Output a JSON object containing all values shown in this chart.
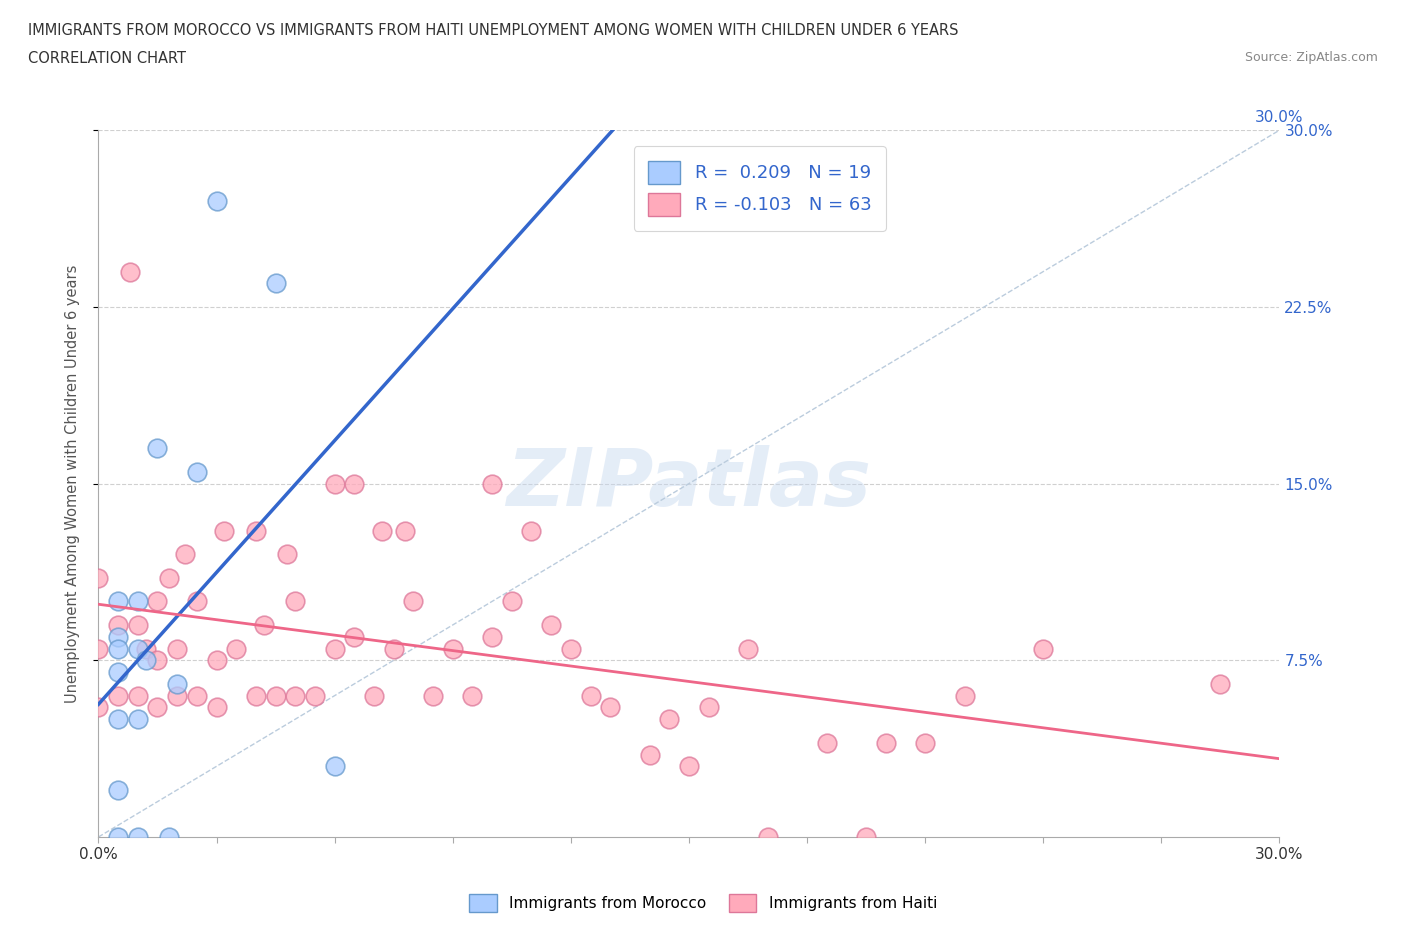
{
  "title_line1": "IMMIGRANTS FROM MOROCCO VS IMMIGRANTS FROM HAITI UNEMPLOYMENT AMONG WOMEN WITH CHILDREN UNDER 6 YEARS",
  "title_line2": "CORRELATION CHART",
  "source": "Source: ZipAtlas.com",
  "ylabel": "Unemployment Among Women with Children Under 6 years",
  "xlim": [
    0.0,
    0.3
  ],
  "ylim": [
    0.0,
    0.3
  ],
  "grid_color": "#d0d0d0",
  "background_color": "#ffffff",
  "morocco_color": "#aaccff",
  "morocco_edge": "#6699cc",
  "haiti_color": "#ffaabb",
  "haiti_edge": "#dd7799",
  "morocco_line_color": "#3366cc",
  "haiti_line_color": "#ee6688",
  "diag_color": "#bbccdd",
  "legend_text_color": "#3366cc",
  "right_tick_color": "#3366cc",
  "title_color": "#333333",
  "source_color": "#888888",
  "ylabel_color": "#555555",
  "morocco_R": 0.209,
  "morocco_N": 19,
  "haiti_R": -0.103,
  "haiti_N": 63,
  "morocco_x": [
    0.005,
    0.005,
    0.005,
    0.005,
    0.005,
    0.005,
    0.005,
    0.01,
    0.01,
    0.01,
    0.01,
    0.012,
    0.015,
    0.018,
    0.02,
    0.025,
    0.03,
    0.045,
    0.06
  ],
  "morocco_y": [
    0.0,
    0.02,
    0.05,
    0.07,
    0.085,
    0.1,
    0.08,
    0.0,
    0.05,
    0.08,
    0.1,
    0.075,
    0.165,
    0.0,
    0.065,
    0.155,
    0.27,
    0.235,
    0.03
  ],
  "haiti_x": [
    0.0,
    0.0,
    0.0,
    0.005,
    0.005,
    0.008,
    0.01,
    0.01,
    0.012,
    0.015,
    0.015,
    0.015,
    0.018,
    0.02,
    0.02,
    0.022,
    0.025,
    0.025,
    0.03,
    0.03,
    0.032,
    0.035,
    0.04,
    0.04,
    0.042,
    0.045,
    0.048,
    0.05,
    0.05,
    0.055,
    0.06,
    0.06,
    0.065,
    0.065,
    0.07,
    0.072,
    0.075,
    0.078,
    0.08,
    0.085,
    0.09,
    0.095,
    0.1,
    0.1,
    0.105,
    0.11,
    0.115,
    0.12,
    0.125,
    0.13,
    0.14,
    0.145,
    0.15,
    0.155,
    0.165,
    0.17,
    0.185,
    0.195,
    0.2,
    0.21,
    0.22,
    0.24,
    0.285
  ],
  "haiti_y": [
    0.055,
    0.08,
    0.11,
    0.06,
    0.09,
    0.24,
    0.06,
    0.09,
    0.08,
    0.055,
    0.075,
    0.1,
    0.11,
    0.06,
    0.08,
    0.12,
    0.06,
    0.1,
    0.055,
    0.075,
    0.13,
    0.08,
    0.06,
    0.13,
    0.09,
    0.06,
    0.12,
    0.06,
    0.1,
    0.06,
    0.08,
    0.15,
    0.085,
    0.15,
    0.06,
    0.13,
    0.08,
    0.13,
    0.1,
    0.06,
    0.08,
    0.06,
    0.085,
    0.15,
    0.1,
    0.13,
    0.09,
    0.08,
    0.06,
    0.055,
    0.035,
    0.05,
    0.03,
    0.055,
    0.08,
    0.0,
    0.04,
    0.0,
    0.04,
    0.04,
    0.06,
    0.08,
    0.065
  ],
  "marker_size": 180,
  "marker_alpha": 0.75,
  "marker_linewidth": 1.2
}
